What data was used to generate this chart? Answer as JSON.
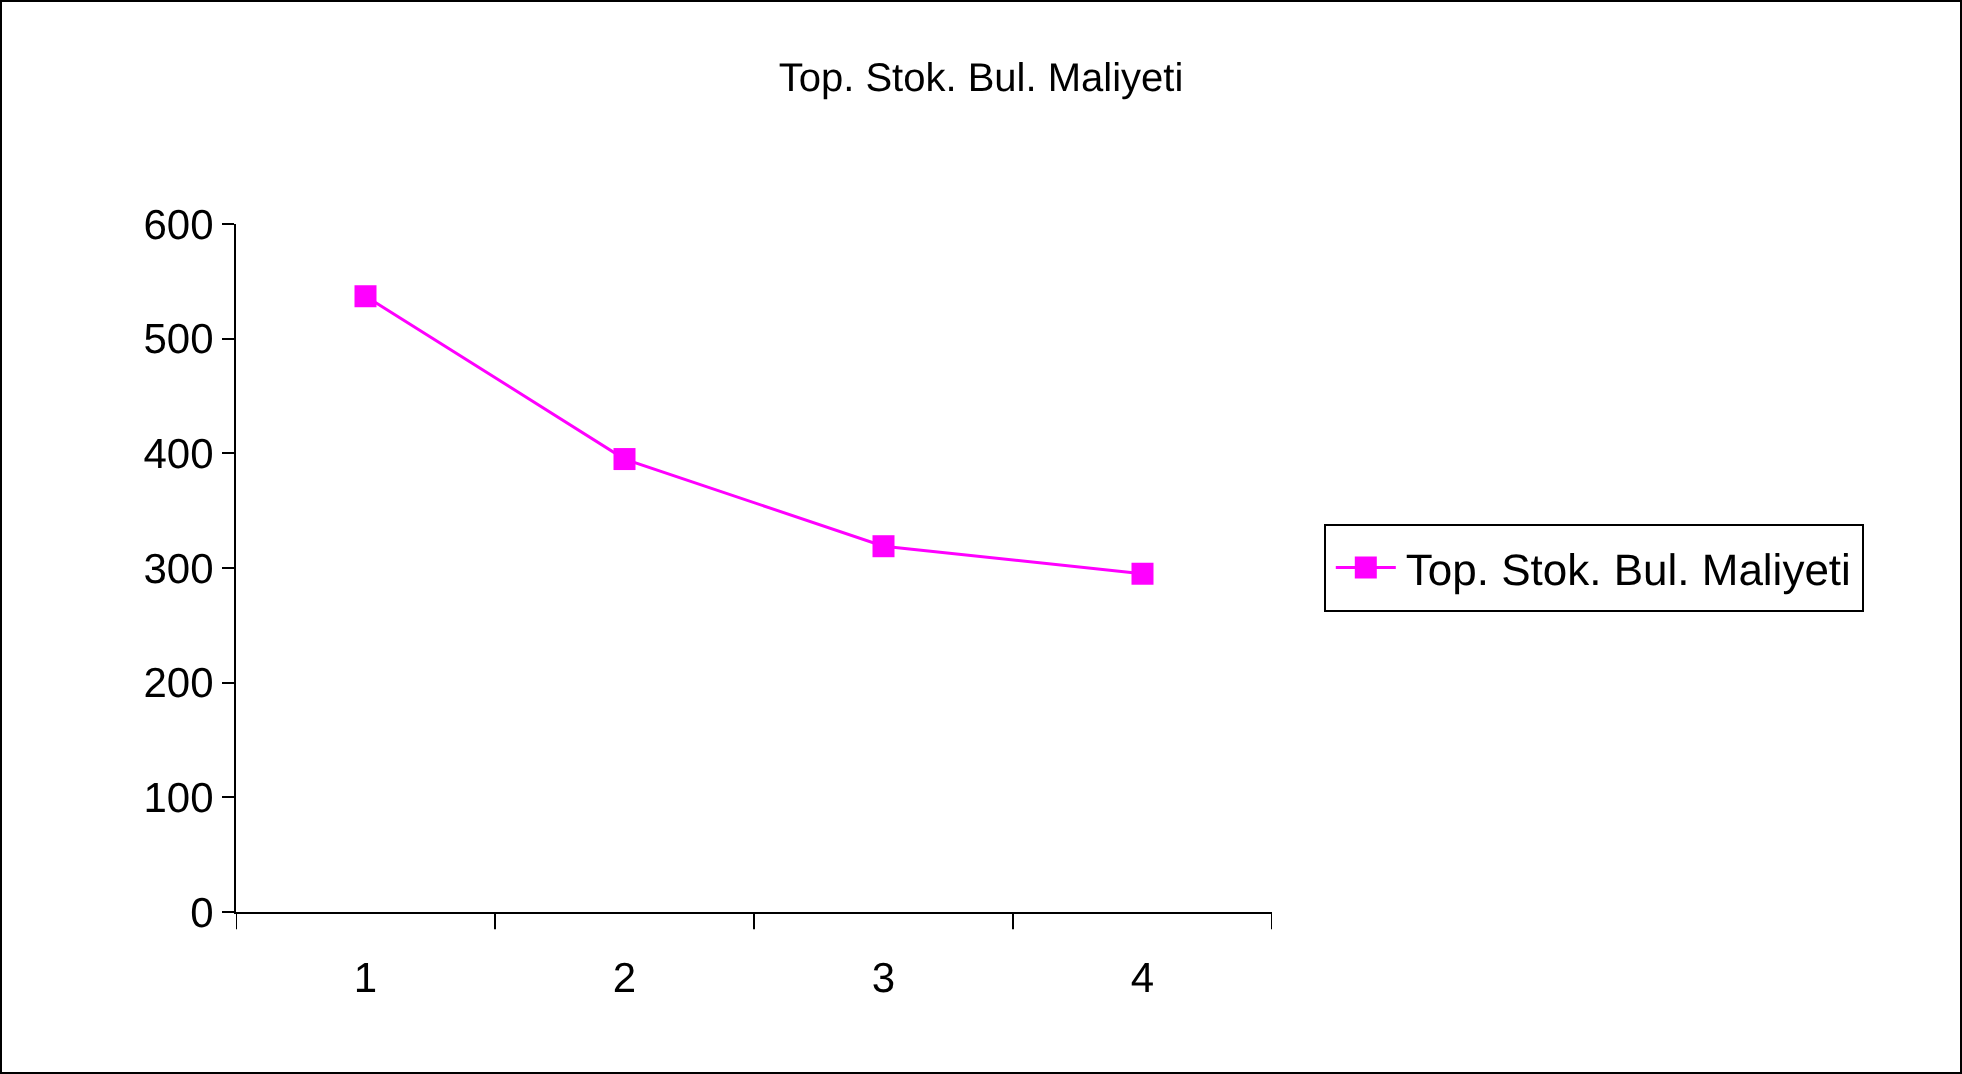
{
  "chart_data": {
    "type": "line",
    "title": "Top. Stok. Bul. Maliyeti",
    "categories": [
      "1",
      "2",
      "3",
      "4"
    ],
    "series": [
      {
        "name": "Top. Stok. Bul. Maliyeti",
        "color": "#ff00ff",
        "values": [
          537,
          395,
          319,
          295
        ]
      }
    ],
    "ylim": [
      0,
      600
    ],
    "yticks": [
      0,
      100,
      200,
      300,
      400,
      500,
      600
    ],
    "grid": false,
    "legend": "right",
    "marker": "square",
    "line_style": "solid"
  }
}
